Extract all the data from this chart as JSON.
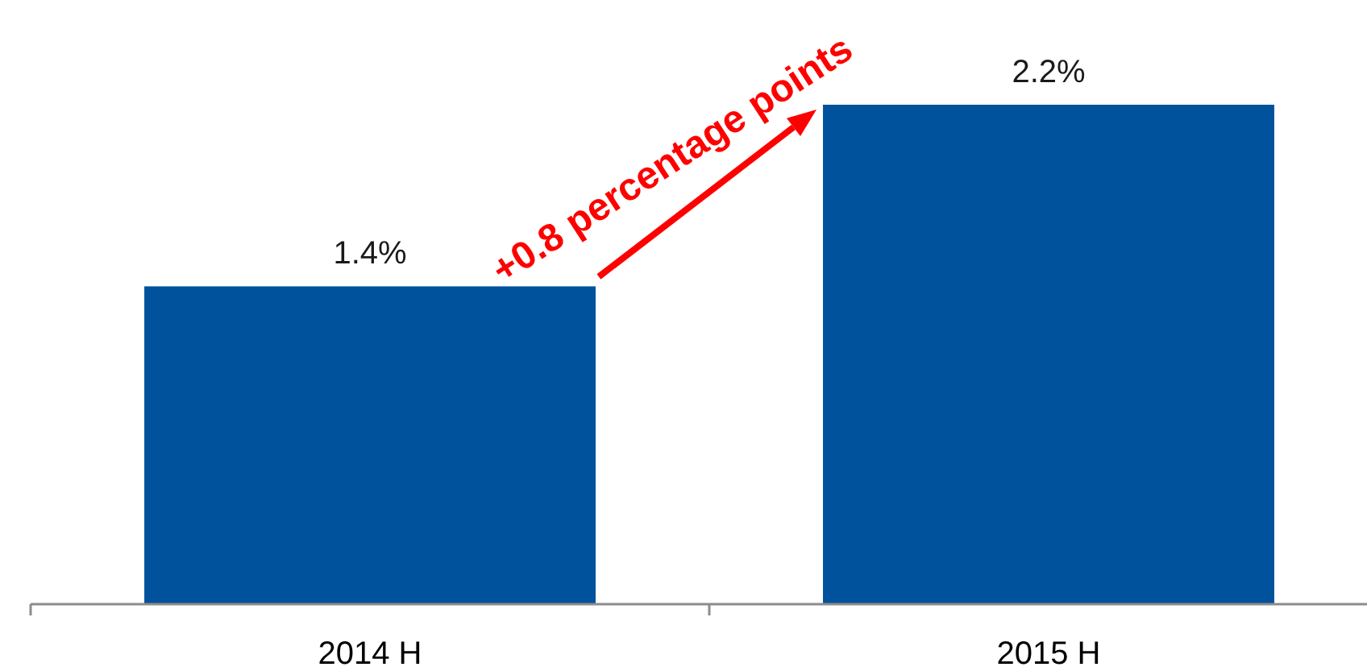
{
  "chart_data": {
    "type": "bar",
    "categories": [
      "2014 H",
      "2015 H"
    ],
    "values": [
      1.4,
      2.2
    ],
    "color": "#00529c",
    "value_labels": [
      "1.4%",
      "2.2%"
    ],
    "annotations": [
      "+0.8 percentage points"
    ]
  }
}
